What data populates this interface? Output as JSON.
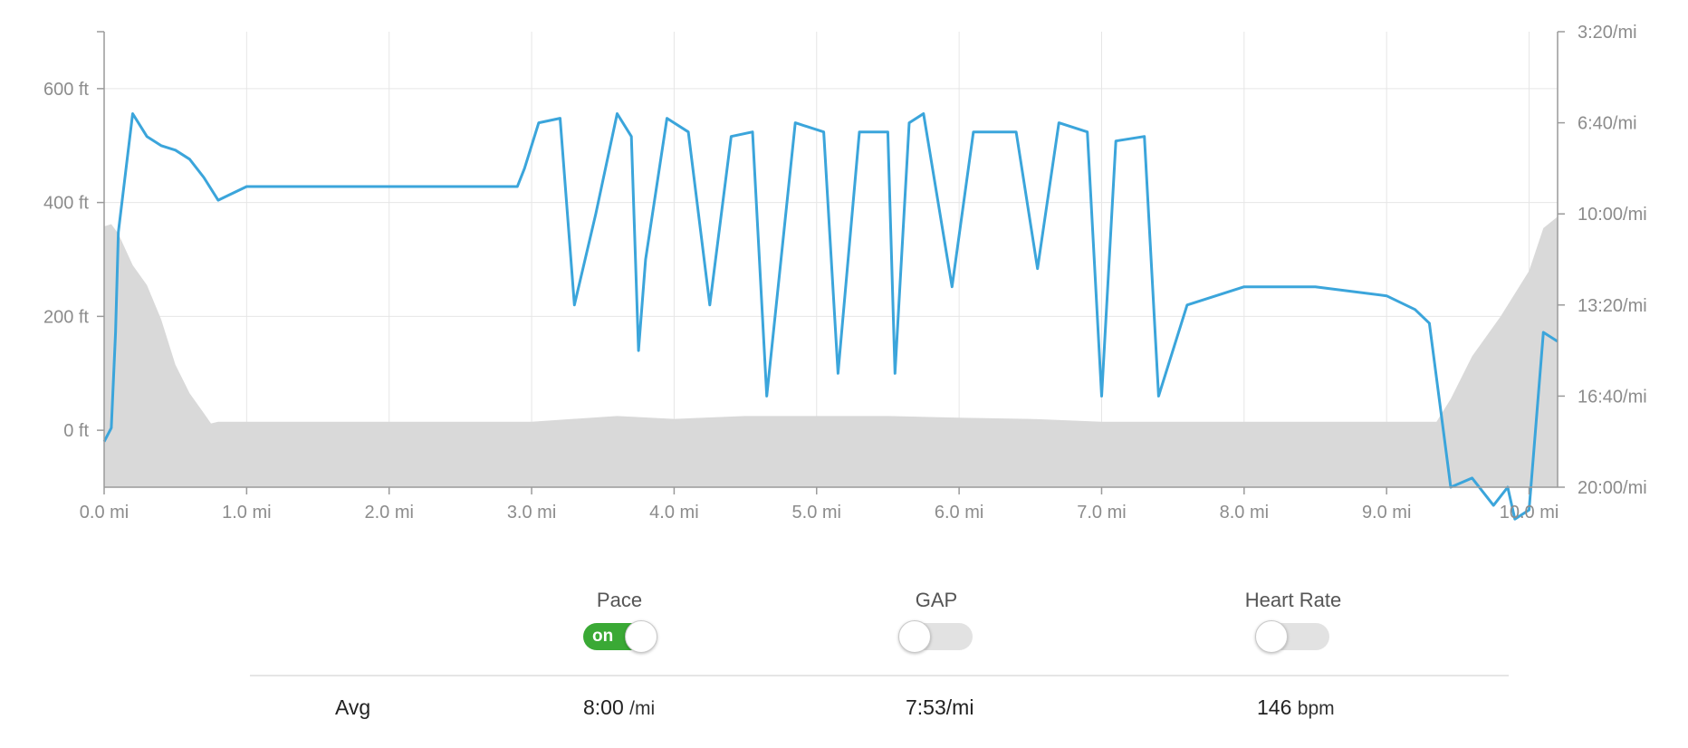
{
  "chart_data": {
    "type": "line",
    "x_axis": {
      "ticks": [
        "0.0 mi",
        "1.0 mi",
        "2.0 mi",
        "3.0 mi",
        "4.0 mi",
        "5.0 mi",
        "6.0 mi",
        "7.0 mi",
        "8.0 mi",
        "9.0 mi",
        "10.0 mi"
      ],
      "range": [
        0,
        10.2
      ],
      "unit": "mi"
    },
    "y_left": {
      "ticks": [
        "0 ft",
        "200 ft",
        "400 ft",
        "600 ft"
      ],
      "range": [
        -100,
        700
      ],
      "unit": "ft"
    },
    "y_right": {
      "ticks": [
        "3:20/mi",
        "6:40/mi",
        "10:00/mi",
        "13:20/mi",
        "16:40/mi",
        "20:00/mi"
      ],
      "range_seconds_per_mile": [
        200,
        1200
      ],
      "inverted": true
    },
    "grid": true,
    "series": [
      {
        "kind": "area",
        "axis": "left",
        "color": "#d9d9d9",
        "x": [
          0,
          0.05,
          0.1,
          0.2,
          0.3,
          0.4,
          0.5,
          0.6,
          0.7,
          0.75,
          0.8,
          1.0,
          2.0,
          3.0,
          3.6,
          4.0,
          4.5,
          5.0,
          5.5,
          6.0,
          6.5,
          7.0,
          8.0,
          9.0,
          9.35,
          9.45,
          9.6,
          9.8,
          10.0,
          10.1,
          10.2
        ],
        "values": [
          358,
          362,
          345,
          290,
          255,
          195,
          115,
          65,
          30,
          12,
          15,
          15,
          15,
          15,
          25,
          20,
          25,
          25,
          25,
          22,
          20,
          15,
          15,
          15,
          15,
          55,
          130,
          200,
          280,
          355,
          375
        ]
      },
      {
        "kind": "line",
        "axis": "right",
        "color": "#3ba5db",
        "x": [
          0,
          0.05,
          0.08,
          0.1,
          0.2,
          0.3,
          0.4,
          0.5,
          0.6,
          0.7,
          0.8,
          1.0,
          1.5,
          2.0,
          2.5,
          2.9,
          2.95,
          3.05,
          3.2,
          3.3,
          3.45,
          3.6,
          3.7,
          3.75,
          3.8,
          3.95,
          4.1,
          4.25,
          4.4,
          4.55,
          4.65,
          4.85,
          5.05,
          5.15,
          5.3,
          5.5,
          5.55,
          5.65,
          5.75,
          5.95,
          6.1,
          6.4,
          6.55,
          6.7,
          6.9,
          7.0,
          7.1,
          7.3,
          7.4,
          7.6,
          8.0,
          8.5,
          9.0,
          9.2,
          9.3,
          9.45,
          9.6,
          9.75,
          9.85,
          9.9,
          10.0,
          10.1,
          10.2
        ],
        "values": [
          1100,
          1070,
          860,
          640,
          380,
          430,
          450,
          460,
          480,
          520,
          570,
          540,
          540,
          540,
          540,
          540,
          500,
          400,
          390,
          800,
          600,
          380,
          430,
          900,
          700,
          390,
          420,
          800,
          430,
          420,
          1000,
          400,
          420,
          950,
          420,
          420,
          950,
          400,
          380,
          760,
          420,
          420,
          720,
          400,
          420,
          1000,
          440,
          430,
          1000,
          800,
          760,
          760,
          780,
          810,
          840,
          1200,
          1180,
          1240,
          1200,
          1270,
          1250,
          860,
          880
        ]
      }
    ]
  },
  "toggles": [
    {
      "label": "Pace",
      "state": "on",
      "state_text": "on"
    },
    {
      "label": "GAP",
      "state": "off",
      "state_text": ""
    },
    {
      "label": "Heart Rate",
      "state": "off",
      "state_text": ""
    }
  ],
  "summary": {
    "label": "Avg",
    "pace_value": "8:00",
    "pace_unit": "/mi",
    "gap_value": "7:53/mi",
    "hr_value": "146",
    "hr_unit": "bpm"
  },
  "colors": {
    "pace_line": "#3ba5db",
    "elevation_fill": "#d9d9d9",
    "toggle_on": "#3aa935",
    "grid": "#e6e6e6",
    "axis": "#9a9a9a"
  }
}
